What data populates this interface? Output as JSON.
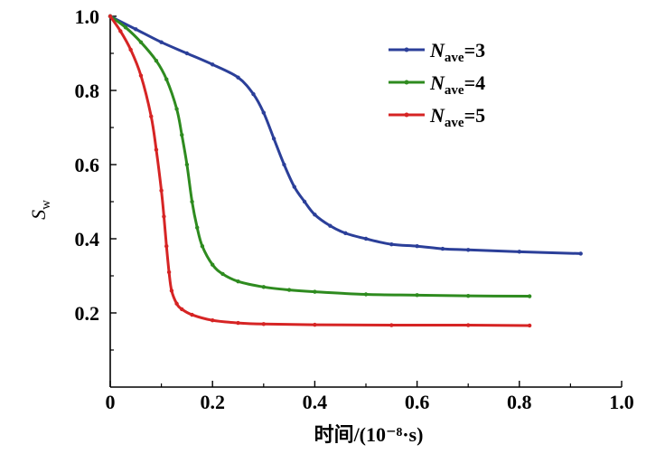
{
  "chart_data": {
    "type": "line",
    "title": "",
    "xlabel": "时间/(10⁻⁸·s)",
    "ylabel": "Sw",
    "ylabel_main": "S",
    "ylabel_sub": "w",
    "xlim": [
      0,
      1.0
    ],
    "ylim": [
      0.0,
      1.0
    ],
    "xticks": [
      0,
      0.2,
      0.4,
      0.6,
      0.8,
      1.0
    ],
    "xtick_labels": [
      "0",
      "0.2",
      "0.4",
      "0.6",
      "0.8",
      "1.0"
    ],
    "yticks": [
      0.2,
      0.4,
      0.6,
      0.8,
      1.0
    ],
    "ytick_labels": [
      "0.2",
      "0.4",
      "0.6",
      "0.8",
      "1.0"
    ],
    "grid": false,
    "legend_position": "top-right",
    "series": [
      {
        "name": "Nave=3",
        "legend_main": "N",
        "legend_sub": "ave",
        "legend_value": "=3",
        "color": "#2b3f99",
        "x": [
          0,
          0.05,
          0.1,
          0.15,
          0.2,
          0.25,
          0.28,
          0.3,
          0.32,
          0.34,
          0.36,
          0.38,
          0.4,
          0.43,
          0.46,
          0.5,
          0.55,
          0.6,
          0.65,
          0.7,
          0.8,
          0.92
        ],
        "y": [
          1.0,
          0.965,
          0.93,
          0.9,
          0.87,
          0.835,
          0.79,
          0.74,
          0.67,
          0.6,
          0.54,
          0.5,
          0.465,
          0.435,
          0.415,
          0.4,
          0.385,
          0.38,
          0.373,
          0.37,
          0.365,
          0.36
        ]
      },
      {
        "name": "Nave=4",
        "legend_main": "N",
        "legend_sub": "ave",
        "legend_value": "=4",
        "color": "#2e8b1f",
        "x": [
          0,
          0.03,
          0.06,
          0.09,
          0.11,
          0.13,
          0.14,
          0.15,
          0.16,
          0.17,
          0.18,
          0.2,
          0.22,
          0.25,
          0.3,
          0.35,
          0.4,
          0.5,
          0.6,
          0.7,
          0.82
        ],
        "y": [
          1.0,
          0.97,
          0.93,
          0.88,
          0.83,
          0.75,
          0.68,
          0.6,
          0.5,
          0.43,
          0.38,
          0.33,
          0.305,
          0.285,
          0.27,
          0.262,
          0.257,
          0.25,
          0.248,
          0.246,
          0.245
        ]
      },
      {
        "name": "Nave=5",
        "legend_main": "N",
        "legend_sub": "ave",
        "legend_value": "=5",
        "color": "#d62424",
        "x": [
          0,
          0.02,
          0.04,
          0.06,
          0.08,
          0.09,
          0.1,
          0.105,
          0.11,
          0.115,
          0.12,
          0.13,
          0.14,
          0.16,
          0.2,
          0.25,
          0.3,
          0.4,
          0.55,
          0.7,
          0.82
        ],
        "y": [
          1.0,
          0.96,
          0.91,
          0.84,
          0.73,
          0.64,
          0.53,
          0.46,
          0.38,
          0.31,
          0.26,
          0.225,
          0.21,
          0.195,
          0.18,
          0.173,
          0.17,
          0.168,
          0.167,
          0.167,
          0.166
        ]
      }
    ]
  }
}
